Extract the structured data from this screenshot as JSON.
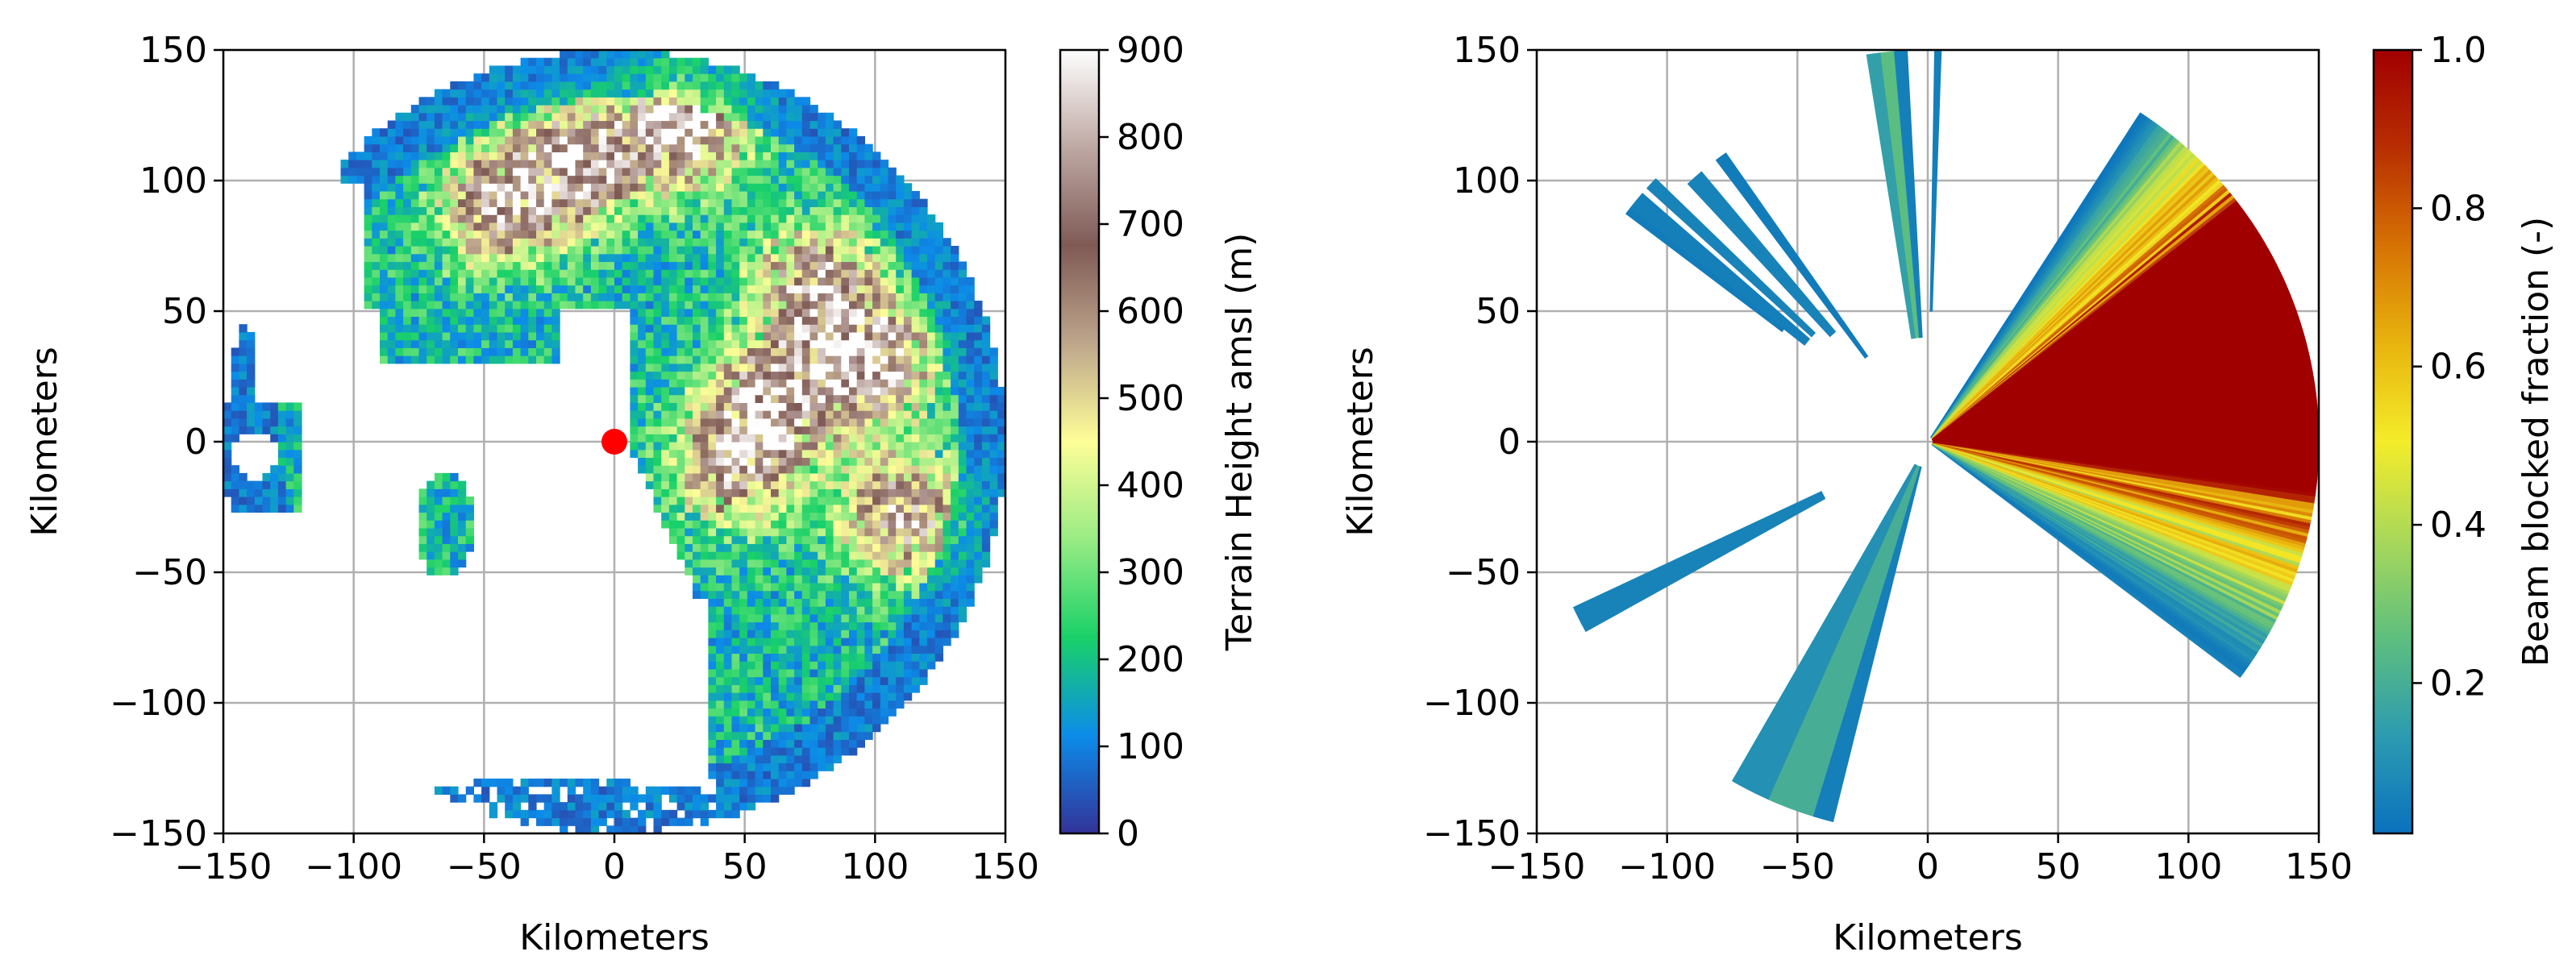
{
  "chart_data": [
    {
      "type": "heatmap",
      "title": "",
      "xlabel": "Kilometers",
      "ylabel": "Kilometers",
      "xlim": [
        -150,
        150
      ],
      "ylim": [
        -150,
        150
      ],
      "grid": true,
      "xticks": [
        -150,
        -100,
        -50,
        0,
        50,
        100,
        150
      ],
      "yticks": [
        -150,
        -100,
        -50,
        0,
        50,
        100,
        150
      ],
      "xtick_labels": [
        "−150",
        "−100",
        "−50",
        "0",
        "50",
        "100",
        "150"
      ],
      "ytick_labels": [
        "−150",
        "−100",
        "−50",
        "0",
        "50",
        "100",
        "150"
      ],
      "radar_site": [
        0,
        0
      ],
      "radar_site_color": "#ff0000",
      "range_km": 150,
      "colorbar": {
        "label": "Terrain Height amsl (m)",
        "range": [
          0,
          900
        ],
        "ticks": [
          0,
          100,
          200,
          300,
          400,
          500,
          600,
          700,
          800,
          900
        ],
        "tick_labels": [
          "0",
          "100",
          "200",
          "300",
          "400",
          "500",
          "600",
          "700",
          "800",
          "900"
        ],
        "colormap": "terrain",
        "colors": [
          "#333399",
          "#0c8ce9",
          "#19d168",
          "#99eb84",
          "#fefe98",
          "#bea68c",
          "#7f5a55",
          "#bea8a3",
          "#fefefe"
        ]
      }
    },
    {
      "type": "heatmap",
      "title": "",
      "xlabel": "Kilometers",
      "ylabel": "Kilometers",
      "xlim": [
        -150,
        150
      ],
      "ylim": [
        -150,
        150
      ],
      "grid": true,
      "xticks": [
        -150,
        -100,
        -50,
        0,
        50,
        100,
        150
      ],
      "yticks": [
        -150,
        -100,
        -50,
        0,
        50,
        100,
        150
      ],
      "xtick_labels": [
        "−150",
        "−100",
        "−50",
        "0",
        "50",
        "100",
        "150"
      ],
      "ytick_labels": [
        "−150",
        "−100",
        "−50",
        "0",
        "50",
        "100",
        "150"
      ],
      "range_km": 150,
      "colorbar": {
        "label": "Beam blocked fraction (-)",
        "range": [
          0.01,
          1.0
        ],
        "ticks": [
          0.2,
          0.4,
          0.6,
          0.8,
          1.0
        ],
        "tick_labels": [
          "0.2",
          "0.4",
          "0.6",
          "0.8",
          "1.0"
        ],
        "colormap": "blocked-fraction",
        "colors": [
          "#0a72be",
          "#2c9bb0",
          "#5ebf7e",
          "#a9d85a",
          "#f4ec2a",
          "#e8b40e",
          "#d67204",
          "#b82e02",
          "#a10000"
        ]
      }
    }
  ]
}
